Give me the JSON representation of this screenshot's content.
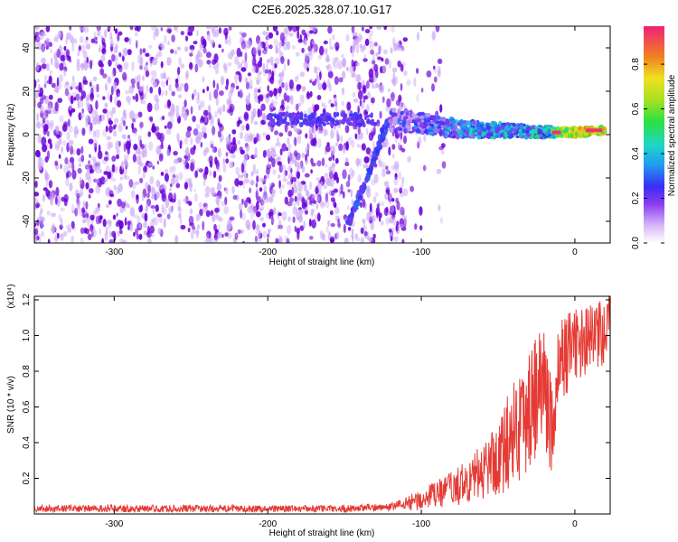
{
  "title": "C2E6.2025.328.07.10.G17",
  "colors": {
    "snr_line": "#e53a34",
    "marker_dark": "#6a00d8",
    "marker_light": "#c9a6f5"
  },
  "chart_data": [
    {
      "type": "heatmap",
      "title": "C2E6.2025.328.07.10.G17",
      "xlabel": "Height of straight line (km)",
      "ylabel": "Frequency (Hz)",
      "xlim": [
        -352,
        23
      ],
      "ylim": [
        -50,
        50
      ],
      "x_ticks": [
        -300,
        -200,
        -100,
        0
      ],
      "y_ticks": [
        -40,
        -20,
        0,
        20,
        40
      ],
      "colorbar": {
        "label": "Normalized spectral amplitude",
        "range": [
          0,
          0.97
        ],
        "ticks": [
          0.0,
          0.2,
          0.4,
          0.6,
          0.8
        ],
        "tick_labels": [
          "0.0",
          "0.2",
          "0.4",
          "0.6",
          "0.8"
        ]
      },
      "features": [
        {
          "name": "broadband noise",
          "x_range": [
            -352,
            -110
          ],
          "y_range": [
            -50,
            50
          ],
          "amplitude": 0.1
        },
        {
          "name": "descending trace",
          "x": [
            -148,
            -140,
            -132,
            -126,
            -121
          ],
          "y": [
            -42,
            -28,
            -14,
            -2,
            8
          ],
          "amplitude": 0.2
        },
        {
          "name": "near-zero line",
          "x_range": [
            -200,
            -130
          ],
          "y_center": 7,
          "amplitude": 0.15
        },
        {
          "name": "main signal band",
          "x": [
            -120,
            -100,
            -80,
            -60,
            -40,
            -20,
            0,
            20
          ],
          "y": [
            7,
            5,
            3,
            2,
            2,
            1,
            1,
            2
          ],
          "amplitude": [
            0.3,
            0.4,
            0.45,
            0.5,
            0.5,
            0.55,
            0.9,
            0.9
          ]
        }
      ]
    },
    {
      "type": "line",
      "xlabel": "Height of straight line (km)",
      "ylabel": "SNR (10 * v/v)",
      "y_scale_label": "(x10⁴)",
      "xlim": [
        -352,
        23
      ],
      "ylim": [
        0,
        1.22
      ],
      "x_ticks": [
        -300,
        -200,
        -100,
        0
      ],
      "y_ticks": [
        0.2,
        0.4,
        0.6,
        0.8,
        1.0,
        1.2
      ],
      "y_tick_labels": [
        "0.2",
        "0.4",
        "0.6",
        "0.8",
        "1.0",
        "1.2"
      ],
      "series": [
        {
          "name": "SNR",
          "x": [
            -352,
            -300,
            -250,
            -200,
            -150,
            -120,
            -100,
            -90,
            -80,
            -70,
            -60,
            -50,
            -40,
            -30,
            -20,
            -15,
            -10,
            0,
            10,
            20,
            23
          ],
          "y": [
            0.03,
            0.03,
            0.03,
            0.03,
            0.03,
            0.04,
            0.08,
            0.11,
            0.14,
            0.18,
            0.24,
            0.32,
            0.45,
            0.6,
            0.75,
            0.45,
            0.85,
            0.95,
            0.98,
            1.0,
            1.05
          ],
          "y_spread": [
            0.02,
            0.02,
            0.02,
            0.02,
            0.02,
            0.02,
            0.06,
            0.08,
            0.1,
            0.12,
            0.16,
            0.22,
            0.3,
            0.35,
            0.35,
            0.3,
            0.25,
            0.2,
            0.2,
            0.2,
            0.2
          ]
        }
      ]
    }
  ]
}
